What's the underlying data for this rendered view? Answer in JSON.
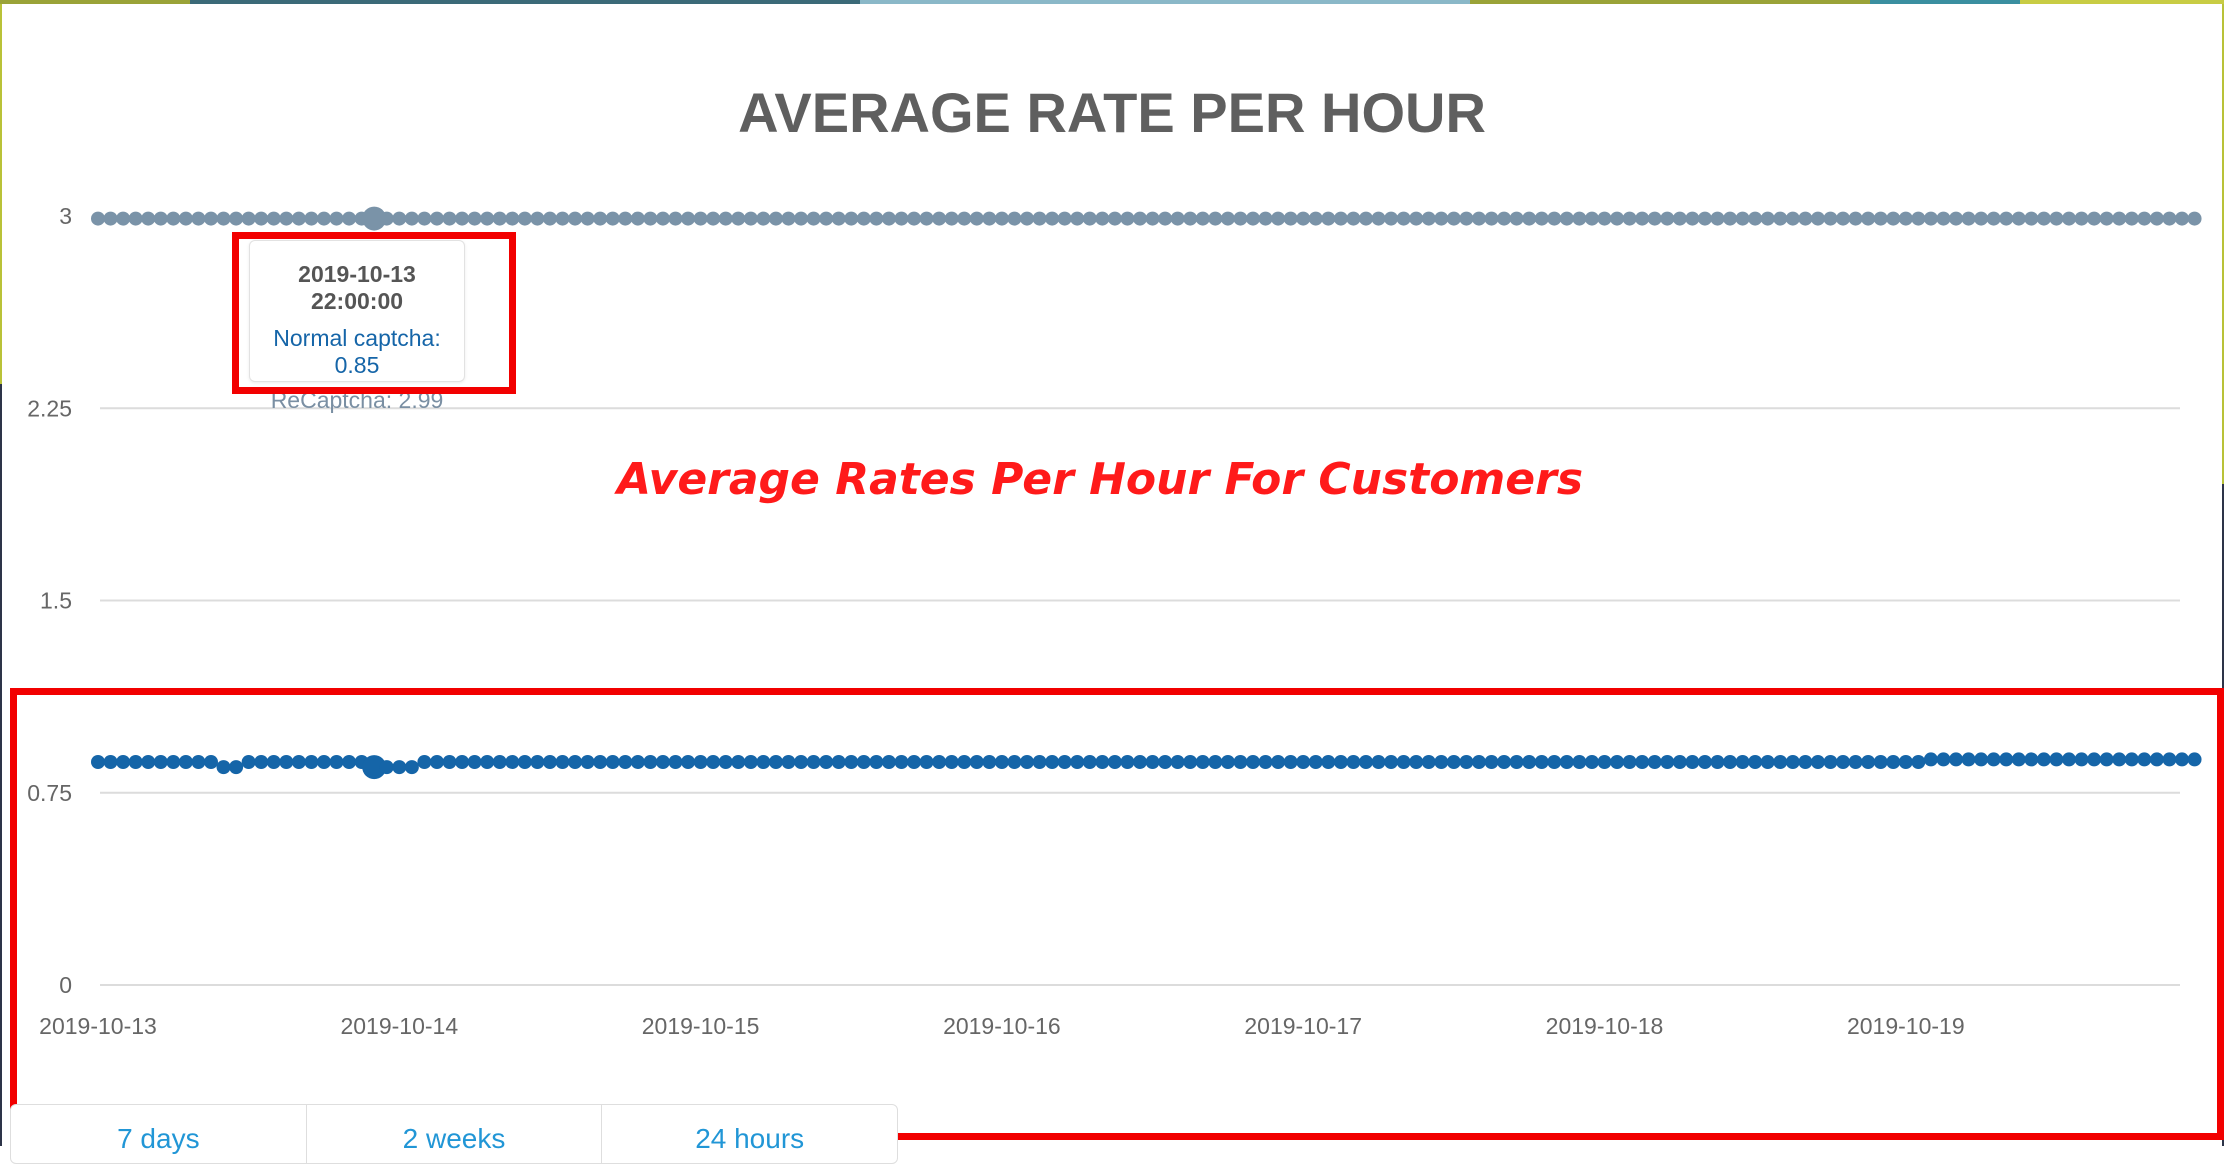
{
  "chart_data": {
    "type": "scatter",
    "title": "AVERAGE RATE PER HOUR",
    "xlabel": "",
    "ylabel": "",
    "ylim": [
      0,
      3
    ],
    "y_ticks": [
      "0",
      "0.75",
      "1.5",
      "2.25",
      "3"
    ],
    "x_ticks": [
      "2019-10-13",
      "2019-10-14",
      "2019-10-15",
      "2019-10-16",
      "2019-10-17",
      "2019-10-18",
      "2019-10-19"
    ],
    "x_range": [
      "2019-10-13 00:00:00",
      "2019-10-19 23:00:00"
    ],
    "x_interval": "1 hour",
    "grid": true,
    "series": [
      {
        "name": "Normal captcha",
        "color": "#1565a8",
        "values_note": "hourly, 168 points",
        "segments": [
          {
            "from_hour": 0,
            "to_hour": 9,
            "value": 0.87
          },
          {
            "from_hour": 10,
            "to_hour": 11,
            "value": 0.85
          },
          {
            "from_hour": 12,
            "to_hour": 21,
            "value": 0.87
          },
          {
            "from_hour": 22,
            "to_hour": 25,
            "value": 0.85
          },
          {
            "from_hour": 26,
            "to_hour": 145,
            "value": 0.87
          },
          {
            "from_hour": 146,
            "to_hour": 167,
            "value": 0.88
          }
        ]
      },
      {
        "name": "ReCaptcha",
        "color": "#7a93a8",
        "values_note": "hourly, 168 points",
        "segments": [
          {
            "from_hour": 0,
            "to_hour": 167,
            "value": 2.99
          }
        ]
      }
    ],
    "highlight_hour": 22,
    "tooltip": {
      "date": "2019-10-13 22:00:00",
      "normal": "Normal captcha: 0.85",
      "recaptcha": "ReCaptcha: 2.99"
    }
  },
  "annotation": {
    "text": "Average Rates Per Hour For Customers",
    "color": "#ff1a1a"
  },
  "range_buttons": [
    "7 days",
    "2 weeks",
    "24 hours"
  ],
  "colors": {
    "accent_link": "#2196d6",
    "annotation_red": "#f20000"
  }
}
